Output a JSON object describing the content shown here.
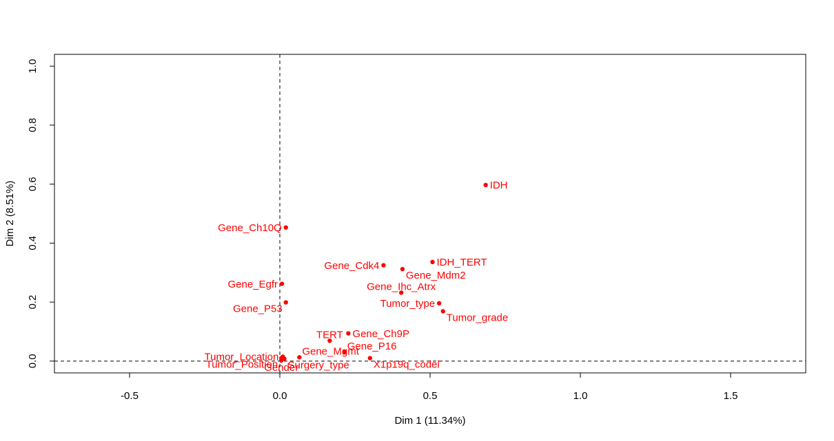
{
  "chart_data": {
    "type": "scatter",
    "title": "",
    "xlabel": "Dim 1 (11.34%)",
    "ylabel": "Dim 2 (8.51%)",
    "xlim": [
      -0.75,
      1.75
    ],
    "ylim": [
      -0.04,
      1.04
    ],
    "xticks": [
      -0.5,
      0.0,
      0.5,
      1.0,
      1.5
    ],
    "xtick_labels": [
      "-0.5",
      "0.0",
      "0.5",
      "1.0",
      "1.5"
    ],
    "yticks": [
      0.0,
      0.2,
      0.4,
      0.6,
      0.8,
      1.0
    ],
    "ytick_labels": [
      "0.0",
      "0.2",
      "0.4",
      "0.6",
      "0.8",
      "1.0"
    ],
    "reference_lines": {
      "x": 0,
      "y": 0,
      "style": "dashed"
    },
    "grid": false,
    "point_color": "#ff0000",
    "points": [
      {
        "label": "IDH",
        "x": 0.685,
        "y": 0.597,
        "anchor": "right"
      },
      {
        "label": "Gene_Ch10Q",
        "x": 0.02,
        "y": 0.453,
        "anchor": "left"
      },
      {
        "label": "Gene_Cdk4",
        "x": 0.345,
        "y": 0.325,
        "anchor": "left"
      },
      {
        "label": "IDH_TERT",
        "x": 0.508,
        "y": 0.336,
        "anchor": "right"
      },
      {
        "label": "Gene_Mdm2",
        "x": 0.408,
        "y": 0.312,
        "anchor": "below-right"
      },
      {
        "label": "Gene_Egfr",
        "x": 0.007,
        "y": 0.262,
        "anchor": "left"
      },
      {
        "label": "Gene_Ihc_Atrx",
        "x": 0.404,
        "y": 0.232,
        "anchor": "above"
      },
      {
        "label": "Gene_P53",
        "x": 0.02,
        "y": 0.199,
        "anchor": "below-left"
      },
      {
        "label": "Tumor_type",
        "x": 0.53,
        "y": 0.196,
        "anchor": "left"
      },
      {
        "label": "Tumor_grade",
        "x": 0.543,
        "y": 0.169,
        "anchor": "below-right"
      },
      {
        "label": "Gene_Ch9P",
        "x": 0.228,
        "y": 0.094,
        "anchor": "right"
      },
      {
        "label": "TERT",
        "x": 0.166,
        "y": 0.069,
        "anchor": "above"
      },
      {
        "label": "Gene_P16",
        "x": 0.215,
        "y": 0.03,
        "anchor": "above-right"
      },
      {
        "label": "Gene_Mgmt",
        "x": 0.065,
        "y": 0.013,
        "anchor": "above-right"
      },
      {
        "label": "X1p19q_codel",
        "x": 0.3,
        "y": 0.01,
        "anchor": "below-right"
      },
      {
        "label": "Tumor_Location",
        "x": 0.01,
        "y": 0.015,
        "anchor": "left"
      },
      {
        "label": "Tumor_Position",
        "x": 0.005,
        "y": 0.01,
        "anchor": "below-left"
      },
      {
        "label": "Surgery_type",
        "x": 0.015,
        "y": 0.008,
        "anchor": "below-right"
      },
      {
        "label": "Gender",
        "x": 0.005,
        "y": 0.002,
        "anchor": "below"
      }
    ]
  }
}
